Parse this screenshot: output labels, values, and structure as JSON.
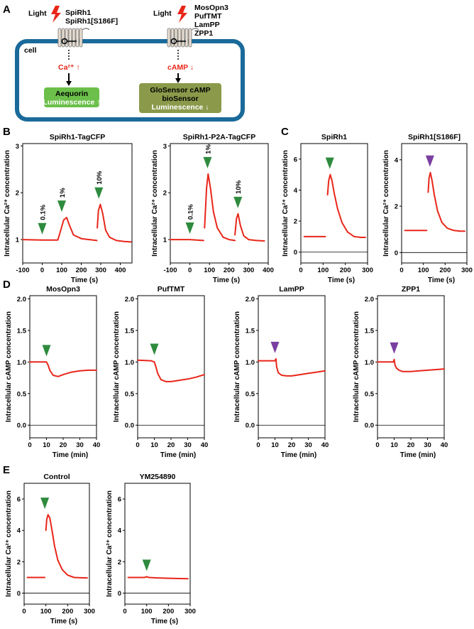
{
  "panels": {
    "A": "A",
    "B": "B",
    "C": "C",
    "D": "D",
    "E": "E"
  },
  "diagram": {
    "cell_label": "cell",
    "left": {
      "light": "Light",
      "receptors": [
        "SpiRh1",
        "SpiRh1[S186F]"
      ],
      "messenger": "Ca²⁺ ↑",
      "reporter": [
        "Aequorin",
        "Luminescence ↑"
      ]
    },
    "right": {
      "light": "Light",
      "receptors": [
        "MosOpn3",
        "PufTMT",
        "LamPP",
        "ZPP1"
      ],
      "messenger": "cAMP ↓",
      "reporter": [
        "GloSensor cAMP",
        "bioSensor",
        "Luminescence ↓"
      ]
    },
    "colors": {
      "cell_border": "#1a6a9a",
      "aequorin_box": "#6bbf4a",
      "glosensor_box": "#8a9a4a",
      "messenger": "#e8261a",
      "lightning": "#e8261a"
    }
  },
  "colors": {
    "trace": "#e8261a",
    "green_marker": "#2e8b3e",
    "purple_marker": "#7a3fa0"
  },
  "chart_data": [
    {
      "id": "B1",
      "panel": "B",
      "type": "line",
      "title": "SpiRh1-TagCFP",
      "xlabel": "Time (s)",
      "ylabel": "Intracellular Ca²⁺ concentration",
      "xlim": [
        -100,
        460
      ],
      "ylim": [
        0.5,
        3.05
      ],
      "xticks": [
        -100,
        0,
        100,
        200,
        300,
        400
      ],
      "yticks": [
        1,
        2,
        3
      ],
      "baseline": null,
      "series": [
        {
          "x": [
            -100,
            0,
            80,
            95,
            110,
            125,
            140,
            160,
            200,
            240,
            280
          ],
          "y": [
            1.0,
            0.99,
            0.99,
            1.2,
            1.42,
            1.47,
            1.3,
            1.1,
            1.02,
            1.0,
            0.98
          ]
        },
        {
          "x": [
            282,
            288,
            298,
            310,
            325,
            345,
            380,
            420,
            455
          ],
          "y": [
            1.25,
            1.62,
            1.75,
            1.55,
            1.2,
            1.05,
            0.98,
            0.96,
            0.95
          ]
        }
      ],
      "markers": [
        {
          "x": 0,
          "color": "green",
          "label": "0.1%"
        },
        {
          "x": 100,
          "color": "green",
          "label": "1%"
        },
        {
          "x": 290,
          "color": "green",
          "label": "10%"
        }
      ]
    },
    {
      "id": "B2",
      "panel": "B",
      "type": "line",
      "title": "SpiRh1-P2A-TagCFP",
      "xlabel": "Time (s)",
      "ylabel": "Intracellular Ca²⁺ concentration",
      "xlim": [
        -100,
        400
      ],
      "ylim": [
        0.5,
        3.05
      ],
      "xticks": [
        -100,
        0,
        100,
        200,
        300,
        400
      ],
      "yticks": [
        1,
        2,
        3
      ],
      "baseline": null,
      "series": [
        {
          "x": [
            -100,
            0,
            70
          ],
          "y": [
            1.0,
            1.0,
            0.98
          ]
        },
        {
          "x": [
            75,
            85,
            93,
            105,
            120,
            140,
            170,
            200,
            230
          ],
          "y": [
            1.25,
            2.1,
            2.4,
            2.1,
            1.6,
            1.25,
            1.05,
            1.0,
            0.98
          ]
        },
        {
          "x": [
            230,
            238,
            246,
            258,
            275,
            300,
            340,
            380
          ],
          "y": [
            1.1,
            1.45,
            1.55,
            1.3,
            1.08,
            1.0,
            0.98,
            0.97
          ]
        }
      ],
      "markers": [
        {
          "x": 0,
          "color": "green",
          "label": "0.1%"
        },
        {
          "x": 90,
          "color": "green",
          "label": "1%"
        },
        {
          "x": 245,
          "color": "green",
          "label": "10%"
        }
      ]
    },
    {
      "id": "C1",
      "panel": "C",
      "type": "line",
      "title": "SpiRh1",
      "xlabel": "Time (s)",
      "ylabel": "Intracellular Ca²⁺ concentration",
      "xlim": [
        0,
        300
      ],
      "ylim": [
        -0.7,
        7.0
      ],
      "xticks": [
        0,
        100,
        200,
        300
      ],
      "yticks": [
        0,
        2,
        4,
        6
      ],
      "baseline": 0,
      "series": [
        {
          "x": [
            15,
            110
          ],
          "y": [
            1.0,
            1.0
          ]
        },
        {
          "x": [
            120,
            125,
            132,
            140,
            150,
            165,
            185,
            210,
            240,
            270,
            290
          ],
          "y": [
            3.7,
            4.6,
            5.0,
            4.6,
            3.8,
            2.8,
            1.9,
            1.3,
            1.0,
            0.95,
            0.95
          ]
        }
      ],
      "markers": [
        {
          "x": 130,
          "color": "green",
          "label": ""
        }
      ]
    },
    {
      "id": "C2",
      "panel": "C",
      "type": "line",
      "title": "SpiRh1[S186F]",
      "xlabel": "Time (s)",
      "ylabel": "Intracellular Ca²⁺ concentration",
      "xlim": [
        0,
        300
      ],
      "ylim": [
        -0.45,
        4.7
      ],
      "xticks": [
        0,
        100,
        200,
        300
      ],
      "yticks": [
        0,
        2,
        4
      ],
      "baseline": 0,
      "series": [
        {
          "x": [
            15,
            115
          ],
          "y": [
            0.95,
            0.95
          ]
        },
        {
          "x": [
            122,
            126,
            132,
            140,
            150,
            165,
            185,
            210,
            240,
            270,
            290
          ],
          "y": [
            2.6,
            3.2,
            3.45,
            3.1,
            2.5,
            1.8,
            1.3,
            1.05,
            0.95,
            0.92,
            0.92
          ]
        }
      ],
      "markers": [
        {
          "x": 130,
          "color": "purple",
          "label": ""
        }
      ]
    },
    {
      "id": "D1",
      "panel": "D",
      "type": "line",
      "title": "MosOpn3",
      "xlabel": "Time (min)",
      "ylabel": "Intracellular cAMP concentration",
      "xlim": [
        0,
        40
      ],
      "ylim": [
        -0.2,
        2.05
      ],
      "xticks": [
        0,
        10,
        20,
        30,
        40
      ],
      "yticks": [
        0.0,
        0.5,
        1.0,
        1.5,
        2.0
      ],
      "baseline": 0,
      "series": [
        {
          "x": [
            0,
            8,
            10,
            11,
            12,
            14,
            17,
            20,
            25,
            30,
            35,
            40
          ],
          "y": [
            1.0,
            1.0,
            1.0,
            0.95,
            0.87,
            0.79,
            0.77,
            0.8,
            0.84,
            0.86,
            0.87,
            0.87
          ]
        }
      ],
      "markers": [
        {
          "x": 10,
          "color": "green",
          "label": ""
        }
      ]
    },
    {
      "id": "D2",
      "panel": "D",
      "type": "line",
      "title": "PufTMT",
      "xlabel": "Time (min)",
      "ylabel": "Intracellular cAMP concentration",
      "xlim": [
        0,
        40
      ],
      "ylim": [
        -0.2,
        2.05
      ],
      "xticks": [
        0,
        10,
        20,
        30,
        40
      ],
      "yticks": [
        0.0,
        0.5,
        1.0,
        1.5,
        2.0
      ],
      "baseline": 0,
      "series": [
        {
          "x": [
            0,
            8,
            10,
            11,
            12,
            14,
            17,
            20,
            25,
            30,
            35,
            40
          ],
          "y": [
            1.03,
            1.02,
            1.0,
            0.92,
            0.82,
            0.72,
            0.69,
            0.69,
            0.71,
            0.73,
            0.76,
            0.8
          ]
        }
      ],
      "markers": [
        {
          "x": 10,
          "color": "green",
          "label": ""
        }
      ]
    },
    {
      "id": "D3",
      "panel": "D",
      "type": "line",
      "title": "LamPP",
      "xlabel": "Time (min)",
      "ylabel": "Intracellular cAMP concentration",
      "xlim": [
        0,
        40
      ],
      "ylim": [
        -0.2,
        2.05
      ],
      "xticks": [
        0,
        10,
        20,
        30,
        40
      ],
      "yticks": [
        0.0,
        0.5,
        1.0,
        1.5,
        2.0
      ],
      "baseline": 0,
      "series": [
        {
          "x": [
            0,
            10,
            10.6,
            11,
            12,
            14,
            17,
            20,
            25,
            30,
            35,
            40
          ],
          "y": [
            1.02,
            1.02,
            1.05,
            0.92,
            0.83,
            0.79,
            0.78,
            0.78,
            0.8,
            0.82,
            0.84,
            0.86
          ]
        }
      ],
      "markers": [
        {
          "x": 10,
          "color": "purple",
          "label": ""
        }
      ]
    },
    {
      "id": "D4",
      "panel": "D",
      "type": "line",
      "title": "ZPP1",
      "xlabel": "Time (min)",
      "ylabel": "Intracellular cAMP concentration",
      "xlim": [
        0,
        40
      ],
      "ylim": [
        -0.2,
        2.05
      ],
      "xticks": [
        0,
        10,
        20,
        30,
        40
      ],
      "yticks": [
        0.0,
        0.5,
        1.0,
        1.5,
        2.0
      ],
      "baseline": 0,
      "series": [
        {
          "x": [
            0,
            9.5,
            10,
            10.5,
            11.5,
            13,
            15,
            20,
            25,
            30,
            35,
            40
          ],
          "y": [
            1.0,
            1.0,
            1.04,
            0.95,
            0.9,
            0.87,
            0.85,
            0.85,
            0.86,
            0.87,
            0.88,
            0.89
          ]
        }
      ],
      "markers": [
        {
          "x": 10,
          "color": "purple",
          "label": ""
        }
      ]
    },
    {
      "id": "E1",
      "panel": "E",
      "type": "line",
      "title": "Control",
      "xlabel": "Time (s)",
      "ylabel": "Intracellular Ca²⁺ concentration",
      "xlim": [
        0,
        300
      ],
      "ylim": [
        -0.7,
        7.0
      ],
      "xticks": [
        0,
        100,
        200,
        300
      ],
      "yticks": [
        0,
        2,
        4,
        6
      ],
      "baseline": 0,
      "series": [
        {
          "x": [
            15,
            95
          ],
          "y": [
            1.0,
            1.0
          ]
        },
        {
          "x": [
            100,
            104,
            110,
            118,
            128,
            140,
            155,
            175,
            200,
            230,
            260,
            290
          ],
          "y": [
            4.0,
            4.7,
            5.0,
            4.8,
            4.0,
            3.0,
            2.1,
            1.5,
            1.15,
            1.0,
            0.98,
            0.97
          ]
        }
      ],
      "markers": [
        {
          "x": 95,
          "color": "green",
          "label": ""
        }
      ]
    },
    {
      "id": "E2",
      "panel": "E",
      "type": "line",
      "title": "YM254890",
      "xlabel": "Time (s)",
      "ylabel": "Intracellular Ca²⁺ concentration",
      "xlim": [
        0,
        300
      ],
      "ylim": [
        -0.7,
        7.0
      ],
      "xticks": [
        0,
        100,
        200,
        300
      ],
      "yticks": [
        0,
        2,
        4,
        6
      ],
      "baseline": 0,
      "series": [
        {
          "x": [
            15,
            90,
            100,
            110,
            150,
            200,
            250,
            290
          ],
          "y": [
            1.0,
            1.0,
            1.05,
            1.0,
            0.97,
            0.95,
            0.93,
            0.92
          ]
        }
      ],
      "markers": [
        {
          "x": 100,
          "color": "green",
          "label": ""
        }
      ]
    }
  ]
}
